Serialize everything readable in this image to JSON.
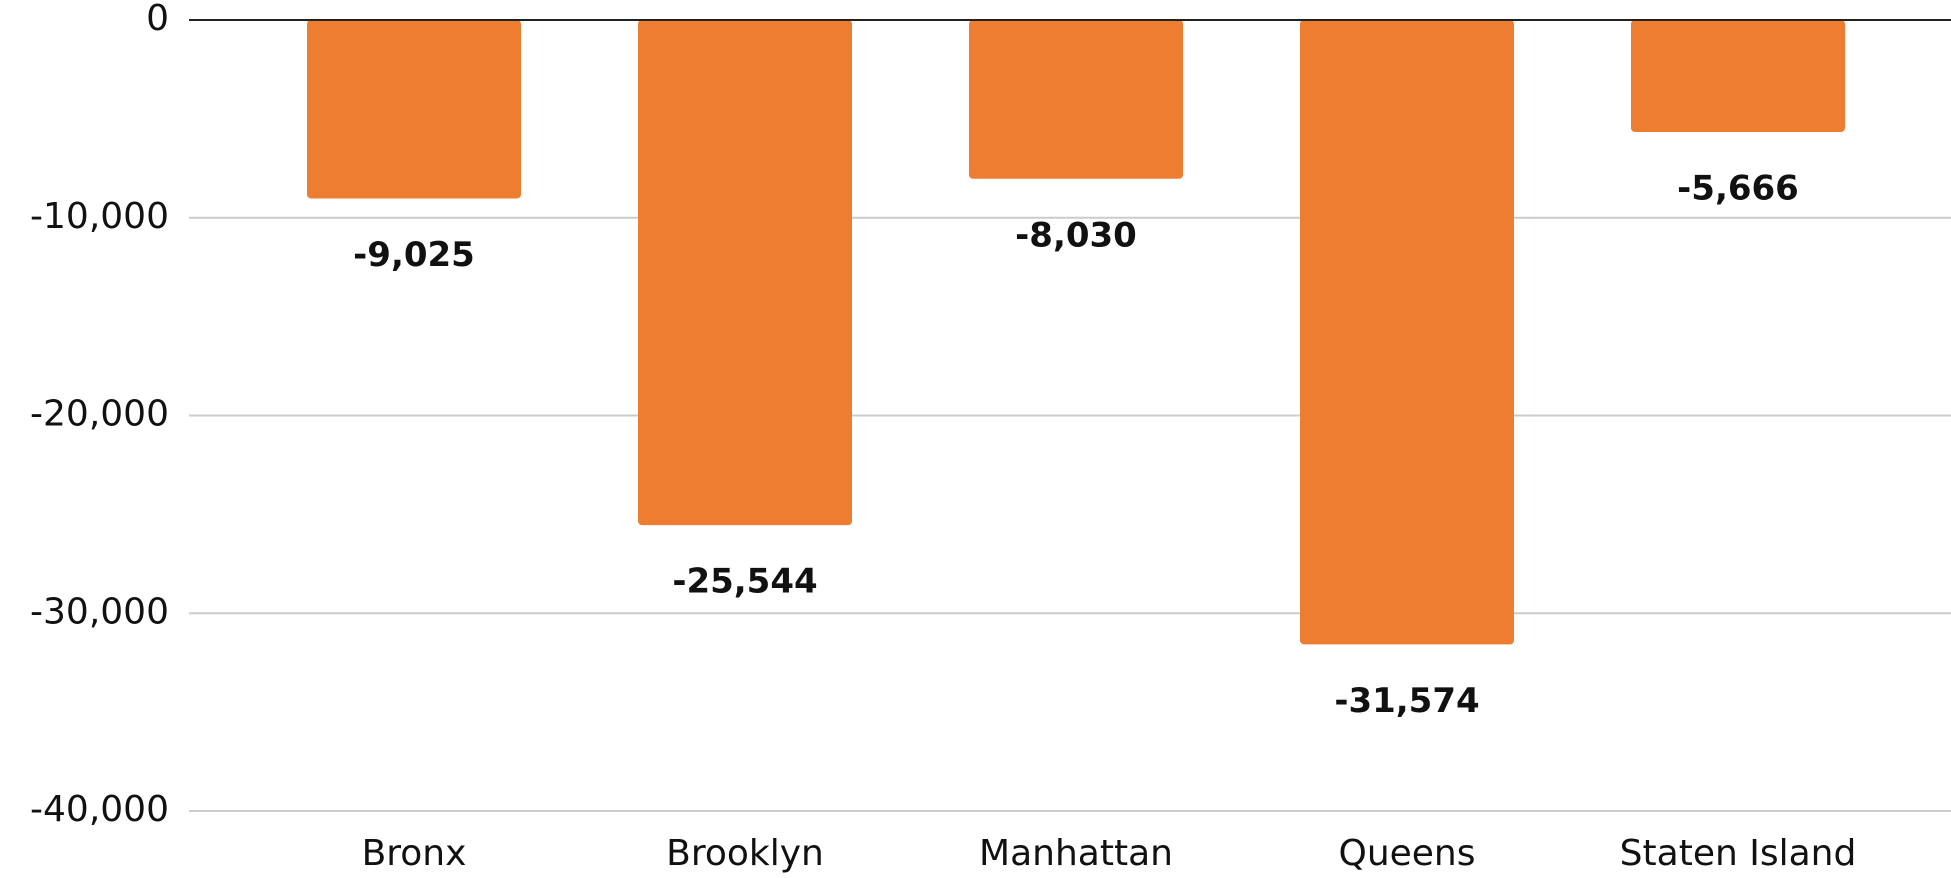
{
  "chart_data": {
    "type": "bar",
    "categories": [
      "Bronx",
      "Brooklyn",
      "Manhattan",
      "Queens",
      "Staten Island"
    ],
    "values": [
      -9025,
      -25544,
      -8030,
      -31574,
      -5666
    ],
    "value_labels": [
      "-9,025",
      "-25,544",
      "-8,030",
      "-31,574",
      "-5,666"
    ],
    "color": "#ed7d31",
    "ylim": [
      -40000,
      0
    ],
    "yticks": [
      0,
      {
        "value": -10000,
        "label": "-10,000"
      },
      {
        "value": -20000,
        "label": "-20,000"
      },
      {
        "value": -30000,
        "label": "-30,000"
      },
      {
        "value": -40000,
        "label": "-40,000"
      }
    ],
    "grid": true
  }
}
